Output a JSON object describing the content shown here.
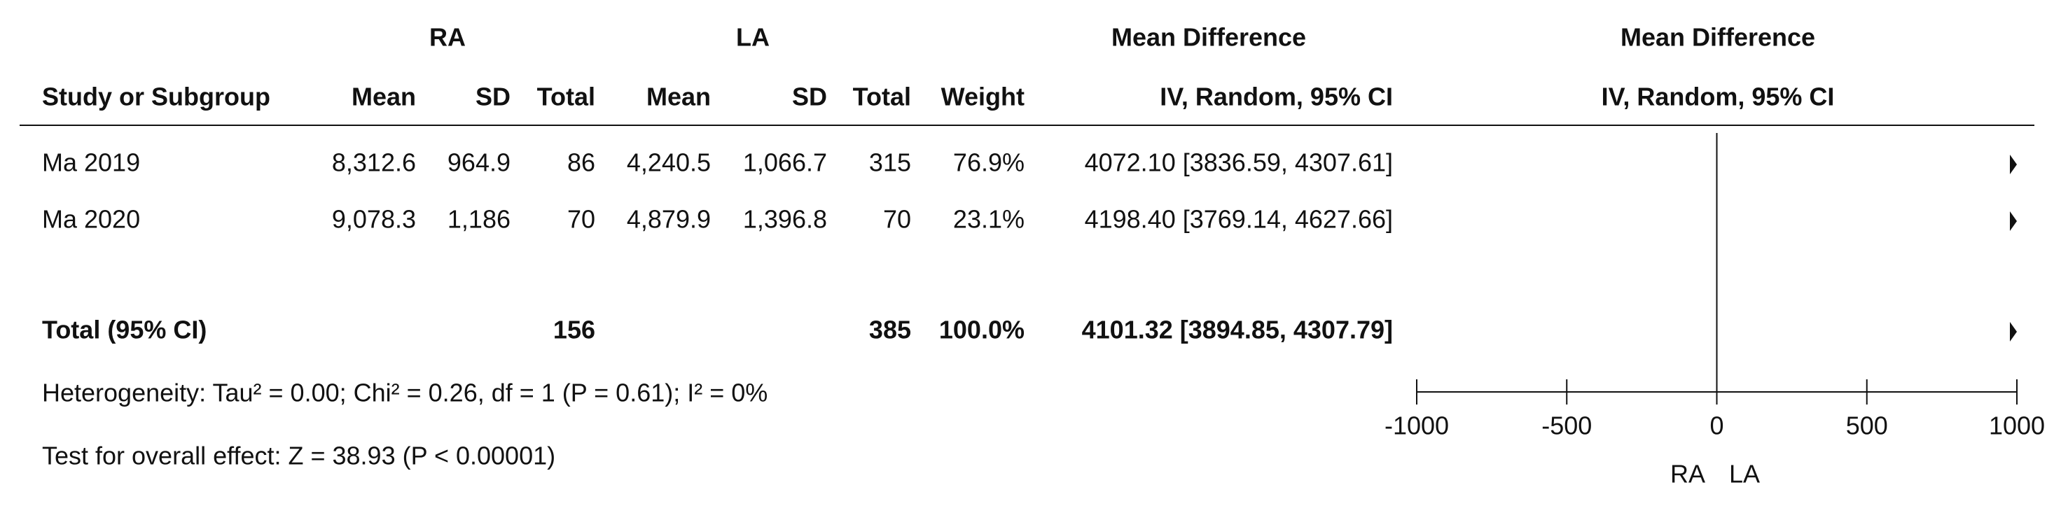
{
  "chart_data": {
    "type": "forest",
    "group_headers": [
      "RA",
      "LA"
    ],
    "effect_header": "Mean Difference",
    "column_headers": [
      "Study or Subgroup",
      "Mean",
      "SD",
      "Total",
      "Mean",
      "SD",
      "Total",
      "Weight",
      "IV, Random, 95% CI"
    ],
    "rows": [
      {
        "study": "Ma 2019",
        "cells": [
          "8,312.6",
          "964.9",
          "86",
          "4,240.5",
          "1,066.7",
          "315",
          "76.9%",
          "4072.10 [3836.59, 4307.61]"
        ],
        "estimate": 4072.1,
        "ci_low": 3836.59,
        "ci_high": 4307.61
      },
      {
        "study": "Ma 2020",
        "cells": [
          "9,078.3",
          "1,186",
          "70",
          "4,879.9",
          "1,396.8",
          "70",
          "23.1%",
          "4198.40 [3769.14, 4627.66]"
        ],
        "estimate": 4198.4,
        "ci_low": 3769.14,
        "ci_high": 4627.66
      }
    ],
    "total": {
      "study": "Total (95% CI)",
      "cells": [
        "",
        "",
        "156",
        "",
        "",
        "385",
        "100.0%",
        "4101.32 [3894.85, 4307.79]"
      ],
      "estimate": 4101.32,
      "ci_low": 3894.85,
      "ci_high": 4307.79
    },
    "heterogeneity": "Heterogeneity: Tau² = 0.00; Chi² = 0.26, df = 1 (P = 0.61); I² = 0%",
    "overall_effect": "Test for overall effect: Z = 38.93 (P < 0.00001)",
    "xlim": [
      -1000,
      1000
    ],
    "xticks": [
      -1000,
      -500,
      0,
      500,
      1000
    ],
    "favours": [
      "RA",
      "LA"
    ]
  }
}
